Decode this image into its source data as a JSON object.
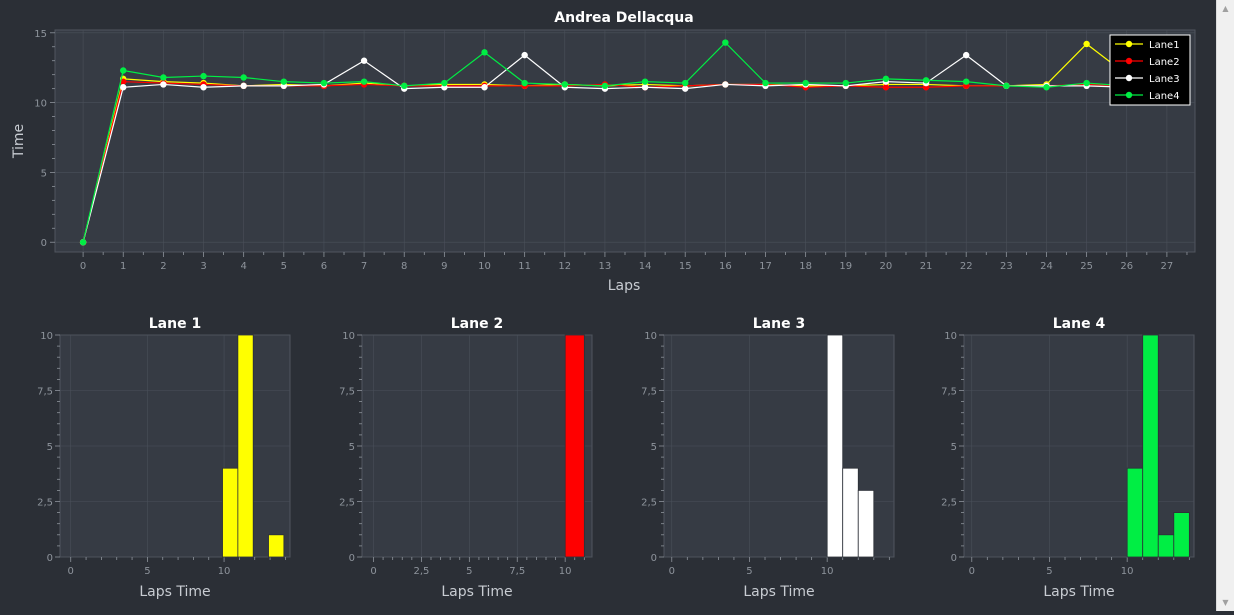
{
  "colors": {
    "background": "#2b2f36",
    "plot_background": "#363b44",
    "grid": "#4a505a",
    "axis_text": "#8e949c",
    "title_text": "#ffffff",
    "lane1": "#ffff00",
    "lane2": "#ff0000",
    "lane3": "#ffffff",
    "lane4": "#00ee44"
  },
  "scrollbar": {
    "up_icon": "chevron-up-icon",
    "down_icon": "chevron-down-icon"
  },
  "chart_data": [
    {
      "type": "line",
      "title": "Andrea Dellacqua",
      "xlabel": "Laps",
      "ylabel": "Time",
      "xlim": [
        -0.7,
        27.7
      ],
      "ylim": [
        -0.7,
        15.2
      ],
      "x_ticks": [
        0,
        1,
        2,
        3,
        4,
        5,
        6,
        7,
        8,
        9,
        10,
        11,
        12,
        13,
        14,
        15,
        16,
        17,
        18,
        19,
        20,
        21,
        22,
        23,
        24,
        25,
        26,
        27
      ],
      "y_ticks": [
        0,
        5,
        10,
        15
      ],
      "grid": true,
      "legend": "top-right",
      "series": [
        {
          "name": "Lane1",
          "color": "#ffff00",
          "x": [
            0,
            1,
            2,
            3,
            4,
            5,
            6,
            7,
            8,
            9,
            10,
            11,
            12,
            13,
            14,
            15,
            16,
            17,
            18,
            19,
            20,
            21,
            22,
            23,
            24,
            25,
            26
          ],
          "y": [
            0,
            11.7,
            11.5,
            11.4,
            11.2,
            11.3,
            11.2,
            11.4,
            11.2,
            11.3,
            11.3,
            11.2,
            11.3,
            11.2,
            11.3,
            11.2,
            11.3,
            11.3,
            11.2,
            11.2,
            11.3,
            11.3,
            11.2,
            11.2,
            11.3,
            14.2,
            12.0
          ]
        },
        {
          "name": "Lane2",
          "color": "#ff0000",
          "x": [
            0,
            1,
            2,
            3,
            4,
            5,
            6,
            7,
            8,
            9,
            10,
            11,
            12,
            13,
            14,
            15,
            16,
            17,
            18,
            19,
            20,
            21,
            22,
            23,
            24,
            25,
            26,
            27
          ],
          "y": [
            0,
            11.5,
            11.4,
            11.3,
            11.2,
            11.2,
            11.2,
            11.3,
            11.2,
            11.2,
            11.2,
            11.2,
            11.2,
            11.3,
            11.1,
            11.2,
            11.3,
            11.3,
            11.1,
            11.2,
            11.1,
            11.1,
            11.2,
            11.2,
            11.2,
            11.3,
            11.2,
            11.1
          ]
        },
        {
          "name": "Lane3",
          "color": "#ffffff",
          "x": [
            0,
            1,
            2,
            3,
            4,
            5,
            6,
            7,
            8,
            9,
            10,
            11,
            12,
            13,
            14,
            15,
            16,
            17,
            18,
            19,
            20,
            21,
            22,
            23,
            24,
            25,
            26,
            27
          ],
          "y": [
            0,
            11.1,
            11.3,
            11.1,
            11.2,
            11.2,
            11.3,
            13.0,
            11.0,
            11.1,
            11.1,
            13.4,
            11.1,
            11.0,
            11.1,
            11.0,
            11.3,
            11.2,
            11.3,
            11.2,
            11.5,
            11.4,
            13.4,
            11.2,
            11.2,
            11.2,
            11.1,
            11.1
          ]
        },
        {
          "name": "Lane4",
          "color": "#00ee44",
          "x": [
            0,
            1,
            2,
            3,
            4,
            5,
            6,
            7,
            8,
            9,
            10,
            11,
            12,
            13,
            14,
            15,
            16,
            17,
            18,
            19,
            20,
            21,
            22,
            23,
            24,
            25,
            26,
            27
          ],
          "y": [
            0,
            12.3,
            11.8,
            11.9,
            11.8,
            11.5,
            11.4,
            11.5,
            11.2,
            11.4,
            13.6,
            11.4,
            11.3,
            11.2,
            11.5,
            11.4,
            14.3,
            11.4,
            11.4,
            11.4,
            11.7,
            11.6,
            11.5,
            11.2,
            11.1,
            11.4,
            11.2,
            11.1
          ]
        }
      ]
    },
    {
      "type": "bar",
      "title": "Lane 1",
      "xlabel": "Laps Time",
      "ylabel": "",
      "color": "#ffff00",
      "xlim": [
        -0.7,
        14.3
      ],
      "ylim": [
        0,
        10
      ],
      "x_ticks": [
        0,
        5,
        10
      ],
      "x_tick_labels": [
        "0",
        "5",
        "10"
      ],
      "y_ticks": [
        0,
        2.5,
        5,
        7.5,
        10
      ],
      "y_tick_labels": [
        "0",
        "2,5",
        "5",
        "7,5",
        "10"
      ],
      "bins": [
        [
          9.9,
          10.9
        ],
        [
          10.9,
          11.9
        ],
        [
          12.9,
          13.9
        ]
      ],
      "values": [
        4,
        10,
        1
      ]
    },
    {
      "type": "bar",
      "title": "Lane 2",
      "xlabel": "Laps Time",
      "ylabel": "",
      "color": "#ff0000",
      "xlim": [
        -0.6,
        11.4
      ],
      "ylim": [
        0,
        10
      ],
      "x_ticks": [
        0,
        2.5,
        5,
        7.5,
        10
      ],
      "x_tick_labels": [
        "0",
        "2,5",
        "5",
        "7,5",
        "10"
      ],
      "y_ticks": [
        0,
        2.5,
        5,
        7.5,
        10
      ],
      "y_tick_labels": [
        "0",
        "2,5",
        "5",
        "7,5",
        "10"
      ],
      "bins": [
        [
          10.0,
          11.0
        ]
      ],
      "values": [
        10
      ]
    },
    {
      "type": "bar",
      "title": "Lane 3",
      "xlabel": "Laps Time",
      "ylabel": "",
      "color": "#ffffff",
      "xlim": [
        -0.5,
        14.3
      ],
      "ylim": [
        0,
        10
      ],
      "x_ticks": [
        0,
        5,
        10
      ],
      "x_tick_labels": [
        "0",
        "5",
        "10"
      ],
      "y_ticks": [
        0,
        2.5,
        5,
        7.5,
        10
      ],
      "y_tick_labels": [
        "0",
        "2,5",
        "5",
        "7,5",
        "10"
      ],
      "bins": [
        [
          10.0,
          11.0
        ],
        [
          11.0,
          12.0
        ],
        [
          12.0,
          13.0
        ]
      ],
      "values": [
        10,
        4,
        3
      ]
    },
    {
      "type": "bar",
      "title": "Lane 4",
      "xlabel": "Laps Time",
      "ylabel": "",
      "color": "#00ee44",
      "xlim": [
        -0.5,
        14.3
      ],
      "ylim": [
        0,
        10
      ],
      "x_ticks": [
        0,
        5,
        10
      ],
      "x_tick_labels": [
        "0",
        "5",
        "10"
      ],
      "y_ticks": [
        0,
        2.5,
        5,
        7.5,
        10
      ],
      "y_tick_labels": [
        "0",
        "2,5",
        "5",
        "7,5",
        "10"
      ],
      "bins": [
        [
          10.0,
          11.0
        ],
        [
          11.0,
          12.0
        ],
        [
          12.0,
          13.0
        ],
        [
          13.0,
          14.0
        ]
      ],
      "values": [
        4,
        10,
        1,
        2
      ]
    }
  ]
}
